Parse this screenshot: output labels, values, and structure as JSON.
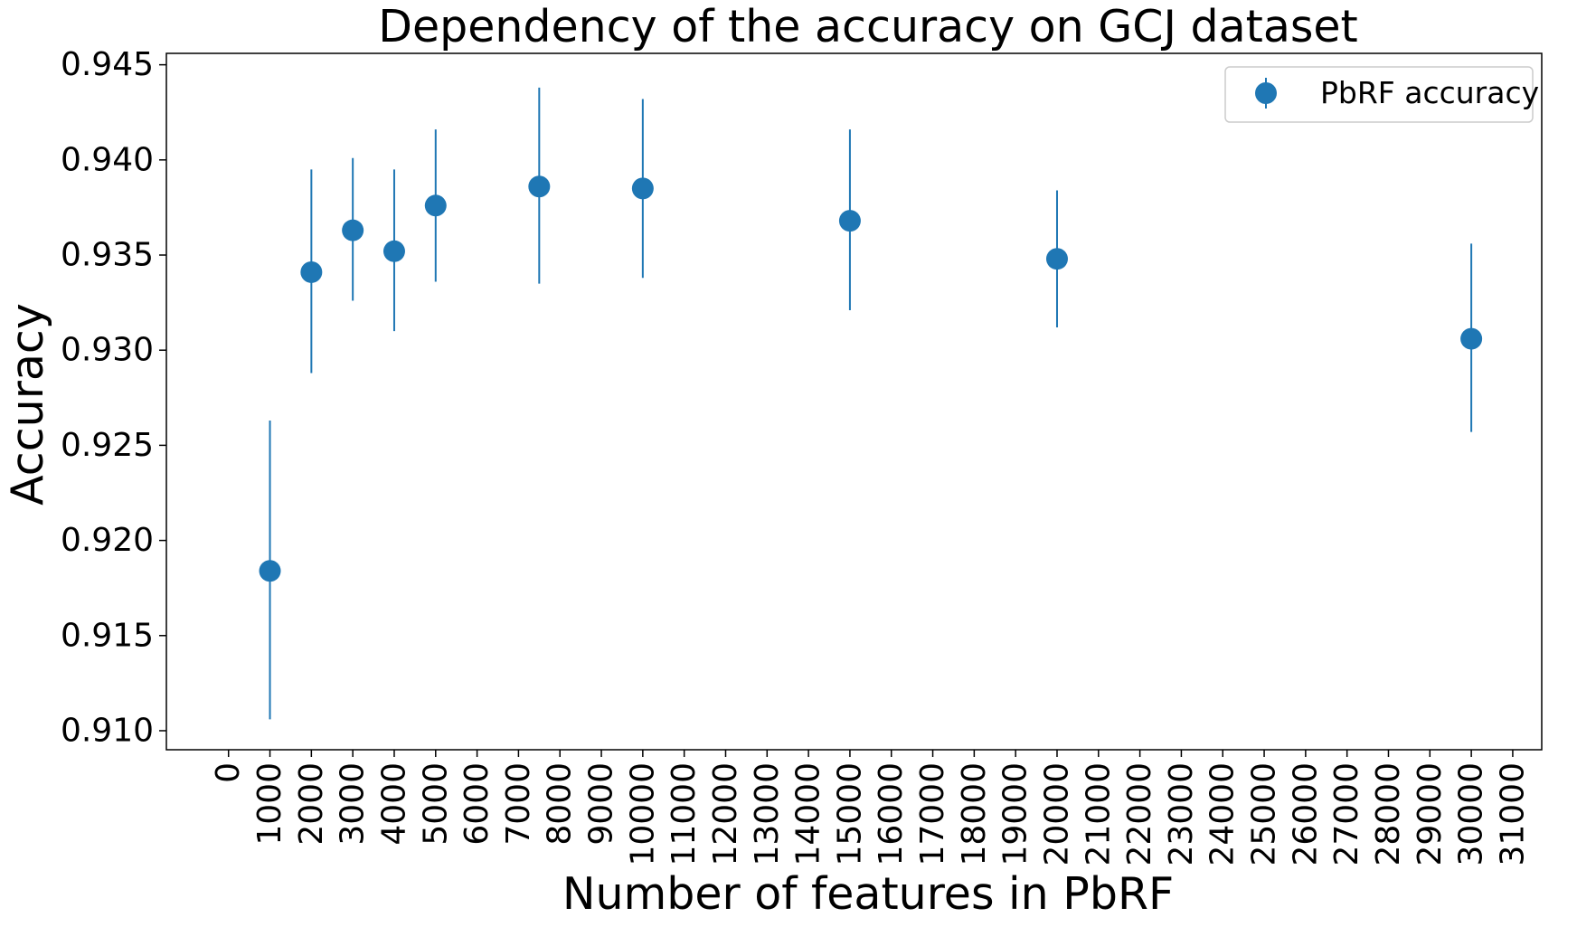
{
  "chart_data": {
    "type": "scatter",
    "title": "Dependency of the accuracy on GCJ dataset",
    "xlabel": "Number of features in PbRF",
    "ylabel": "Accuracy",
    "xlim": [
      -1500,
      31700
    ],
    "ylim": [
      0.909,
      0.9456
    ],
    "xticks": [
      0,
      1000,
      2000,
      3000,
      4000,
      5000,
      6000,
      7000,
      8000,
      9000,
      10000,
      11000,
      12000,
      13000,
      14000,
      15000,
      16000,
      17000,
      18000,
      19000,
      20000,
      21000,
      22000,
      23000,
      24000,
      25000,
      26000,
      27000,
      28000,
      29000,
      30000,
      31000
    ],
    "yticks": [
      "0.910",
      "0.915",
      "0.920",
      "0.925",
      "0.930",
      "0.935",
      "0.940",
      "0.945"
    ],
    "grid": false,
    "legend_position": "top-right",
    "series": [
      {
        "name": "PbRF accuracy",
        "color": "#1f77b4",
        "x": [
          1000,
          2000,
          3000,
          4000,
          5000,
          7500,
          10000,
          15000,
          20000,
          30000
        ],
        "y": [
          0.9184,
          0.9341,
          0.9363,
          0.9352,
          0.9376,
          0.9386,
          0.9385,
          0.9368,
          0.9348,
          0.9306
        ],
        "err_low": [
          0.9106,
          0.9288,
          0.9326,
          0.931,
          0.9336,
          0.9335,
          0.9338,
          0.9321,
          0.9312,
          0.9257
        ],
        "err_high": [
          0.9263,
          0.9395,
          0.9401,
          0.9395,
          0.9416,
          0.9438,
          0.9432,
          0.9416,
          0.9384,
          0.9356
        ]
      }
    ]
  }
}
